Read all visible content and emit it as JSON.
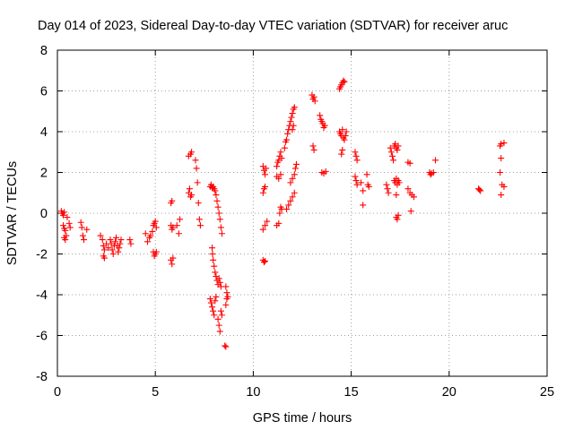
{
  "chart_data": {
    "type": "scatter",
    "title": "Day 014 of 2023, Sidereal Day-to-day VTEC variation (SDTVAR) for receiver aruc",
    "xlabel": "GPS time / hours",
    "ylabel": "SDTVAR / TECUs",
    "xlim": [
      0,
      25
    ],
    "ylim": [
      -8,
      8
    ],
    "xticks": [
      0,
      5,
      10,
      15,
      20,
      25
    ],
    "yticks": [
      -8,
      -6,
      -4,
      -2,
      0,
      2,
      4,
      6,
      8
    ],
    "xtick_labels": [
      "0",
      "5",
      "10",
      "15",
      "20",
      "25"
    ],
    "ytick_labels": [
      "-8",
      "-6",
      "-4",
      "-2",
      "0",
      "2",
      "4",
      "6",
      "8"
    ],
    "grid": true,
    "marker": "+",
    "marker_color": "#ff0000",
    "series": [
      {
        "name": "SDTVAR",
        "points": [
          [
            0.2,
            0.1
          ],
          [
            0.25,
            0.0
          ],
          [
            0.3,
            -0.1
          ],
          [
            0.35,
            0.05
          ],
          [
            0.3,
            -0.6
          ],
          [
            0.35,
            -0.75
          ],
          [
            0.4,
            -0.85
          ],
          [
            0.35,
            -1.2
          ],
          [
            0.4,
            -1.3
          ],
          [
            0.45,
            -1.1
          ],
          [
            0.6,
            -0.5
          ],
          [
            0.65,
            -0.7
          ],
          [
            0.5,
            -0.2
          ],
          [
            1.2,
            -0.45
          ],
          [
            1.25,
            -0.7
          ],
          [
            1.3,
            -1.1
          ],
          [
            1.35,
            -1.3
          ],
          [
            1.5,
            -0.8
          ],
          [
            2.2,
            -1.1
          ],
          [
            2.3,
            -1.3
          ],
          [
            2.35,
            -1.6
          ],
          [
            2.4,
            -1.8
          ],
          [
            2.35,
            -2.1
          ],
          [
            2.4,
            -2.2
          ],
          [
            2.5,
            -1.5
          ],
          [
            2.6,
            -1.7
          ],
          [
            2.7,
            -1.3
          ],
          [
            2.75,
            -1.5
          ],
          [
            2.8,
            -1.8
          ],
          [
            2.85,
            -2.0
          ],
          [
            2.9,
            -1.6
          ],
          [
            2.95,
            -1.4
          ],
          [
            3.0,
            -1.2
          ],
          [
            3.05,
            -1.6
          ],
          [
            3.1,
            -1.9
          ],
          [
            3.15,
            -1.7
          ],
          [
            3.2,
            -1.5
          ],
          [
            3.25,
            -1.3
          ],
          [
            3.7,
            -1.3
          ],
          [
            3.75,
            -1.5
          ],
          [
            4.5,
            -1.0
          ],
          [
            4.6,
            -1.4
          ],
          [
            4.7,
            -1.2
          ],
          [
            4.75,
            -1.1
          ],
          [
            4.85,
            -0.9
          ],
          [
            4.9,
            -0.6
          ],
          [
            4.95,
            -0.5
          ],
          [
            5.0,
            -0.4
          ],
          [
            5.05,
            -0.7
          ],
          [
            4.9,
            -1.9
          ],
          [
            4.95,
            -2.1
          ],
          [
            5.0,
            -2.0
          ],
          [
            5.05,
            -1.9
          ],
          [
            5.8,
            -2.3
          ],
          [
            5.85,
            -2.5
          ],
          [
            5.9,
            -2.2
          ],
          [
            5.8,
            0.5
          ],
          [
            5.85,
            0.6
          ],
          [
            5.8,
            -0.6
          ],
          [
            5.85,
            -0.8
          ],
          [
            5.9,
            -0.7
          ],
          [
            6.1,
            -0.6
          ],
          [
            6.2,
            -1.0
          ],
          [
            6.25,
            -0.3
          ],
          [
            6.7,
            1.0
          ],
          [
            6.75,
            1.2
          ],
          [
            6.8,
            0.8
          ],
          [
            6.85,
            0.9
          ],
          [
            6.7,
            2.8
          ],
          [
            6.8,
            2.9
          ],
          [
            6.85,
            3.0
          ],
          [
            7.05,
            2.6
          ],
          [
            7.1,
            2.2
          ],
          [
            7.15,
            1.5
          ],
          [
            7.2,
            0.5
          ],
          [
            7.25,
            -0.3
          ],
          [
            7.3,
            -0.6
          ],
          [
            7.8,
            1.3
          ],
          [
            7.85,
            1.4
          ],
          [
            7.9,
            1.25
          ],
          [
            7.95,
            1.3
          ],
          [
            8.0,
            1.2
          ],
          [
            8.05,
            1.1
          ],
          [
            8.1,
            0.9
          ],
          [
            8.15,
            0.6
          ],
          [
            8.2,
            0.3
          ],
          [
            8.25,
            0.0
          ],
          [
            8.3,
            -0.3
          ],
          [
            8.35,
            -0.7
          ],
          [
            8.4,
            -1.0
          ],
          [
            7.9,
            -1.7
          ],
          [
            7.92,
            -2.0
          ],
          [
            7.95,
            -2.3
          ],
          [
            8.0,
            -2.6
          ],
          [
            8.05,
            -2.9
          ],
          [
            8.1,
            -3.1
          ],
          [
            8.15,
            -3.3
          ],
          [
            8.2,
            -3.5
          ],
          [
            8.25,
            -3.2
          ],
          [
            8.3,
            -3.4
          ],
          [
            8.35,
            -3.6
          ],
          [
            7.8,
            -4.2
          ],
          [
            7.85,
            -4.4
          ],
          [
            7.9,
            -4.6
          ],
          [
            7.95,
            -4.8
          ],
          [
            8.0,
            -5.0
          ],
          [
            8.05,
            -4.3
          ],
          [
            8.1,
            -4.1
          ],
          [
            8.2,
            -5.2
          ],
          [
            8.25,
            -5.5
          ],
          [
            8.3,
            -5.8
          ],
          [
            8.35,
            -4.8
          ],
          [
            8.4,
            -5.0
          ],
          [
            8.6,
            -3.6
          ],
          [
            8.65,
            -3.9
          ],
          [
            8.7,
            -4.1
          ],
          [
            8.6,
            -4.5
          ],
          [
            8.65,
            -4.2
          ],
          [
            8.55,
            -6.5
          ],
          [
            8.6,
            -6.55
          ],
          [
            10.5,
            2.3
          ],
          [
            10.55,
            2.1
          ],
          [
            10.6,
            1.9
          ],
          [
            10.65,
            2.2
          ],
          [
            10.5,
            1.0
          ],
          [
            10.55,
            1.2
          ],
          [
            10.6,
            1.3
          ],
          [
            10.5,
            -0.8
          ],
          [
            10.6,
            -0.6
          ],
          [
            10.7,
            -0.4
          ],
          [
            10.5,
            -2.3
          ],
          [
            10.55,
            -2.4
          ],
          [
            10.6,
            -2.35
          ],
          [
            11.2,
            -0.6
          ],
          [
            11.3,
            -0.5
          ],
          [
            11.35,
            0.0
          ],
          [
            11.4,
            0.3
          ],
          [
            11.45,
            0.2
          ],
          [
            11.2,
            1.8
          ],
          [
            11.3,
            1.7
          ],
          [
            11.4,
            1.9
          ],
          [
            11.2,
            2.3
          ],
          [
            11.25,
            2.5
          ],
          [
            11.3,
            2.6
          ],
          [
            11.35,
            2.8
          ],
          [
            11.4,
            3.0
          ],
          [
            11.45,
            2.7
          ],
          [
            11.6,
            3.2
          ],
          [
            11.65,
            3.5
          ],
          [
            11.7,
            3.6
          ],
          [
            11.75,
            3.9
          ],
          [
            11.8,
            4.1
          ],
          [
            11.85,
            4.3
          ],
          [
            11.9,
            4.5
          ],
          [
            11.95,
            4.7
          ],
          [
            12.0,
            4.9
          ],
          [
            12.05,
            5.1
          ],
          [
            12.1,
            5.2
          ],
          [
            12.0,
            4.1
          ],
          [
            12.05,
            4.3
          ],
          [
            11.7,
            0.2
          ],
          [
            11.8,
            0.4
          ],
          [
            11.9,
            0.6
          ],
          [
            12.0,
            0.8
          ],
          [
            12.1,
            1.0
          ],
          [
            11.9,
            1.5
          ],
          [
            12.0,
            1.7
          ],
          [
            12.1,
            1.9
          ],
          [
            12.15,
            2.2
          ],
          [
            12.2,
            2.4
          ],
          [
            13.0,
            5.8
          ],
          [
            13.05,
            5.6
          ],
          [
            13.1,
            5.7
          ],
          [
            13.15,
            5.5
          ],
          [
            13.05,
            3.3
          ],
          [
            13.1,
            3.1
          ],
          [
            13.4,
            4.8
          ],
          [
            13.45,
            4.6
          ],
          [
            13.5,
            4.5
          ],
          [
            13.55,
            4.4
          ],
          [
            13.6,
            4.2
          ],
          [
            13.65,
            4.3
          ],
          [
            13.5,
            2.0
          ],
          [
            13.6,
            1.95
          ],
          [
            13.7,
            2.05
          ],
          [
            14.4,
            6.1
          ],
          [
            14.45,
            6.2
          ],
          [
            14.5,
            6.3
          ],
          [
            14.55,
            6.4
          ],
          [
            14.6,
            6.5
          ],
          [
            14.65,
            6.45
          ],
          [
            14.4,
            4.0
          ],
          [
            14.45,
            3.9
          ],
          [
            14.5,
            3.8
          ],
          [
            14.55,
            4.1
          ],
          [
            14.6,
            3.7
          ],
          [
            14.65,
            3.6
          ],
          [
            14.7,
            3.8
          ],
          [
            14.75,
            4.0
          ],
          [
            14.5,
            2.9
          ],
          [
            14.55,
            3.1
          ],
          [
            15.2,
            3.0
          ],
          [
            15.25,
            2.8
          ],
          [
            15.3,
            2.6
          ],
          [
            15.2,
            1.8
          ],
          [
            15.25,
            1.6
          ],
          [
            15.3,
            1.4
          ],
          [
            15.5,
            1.5
          ],
          [
            15.6,
            1.1
          ],
          [
            15.6,
            0.4
          ],
          [
            15.8,
            1.9
          ],
          [
            15.85,
            1.4
          ],
          [
            15.9,
            1.3
          ],
          [
            16.8,
            1.4
          ],
          [
            16.85,
            1.2
          ],
          [
            16.9,
            1.0
          ],
          [
            17.0,
            3.2
          ],
          [
            17.05,
            3.0
          ],
          [
            17.1,
            2.8
          ],
          [
            17.15,
            2.6
          ],
          [
            17.2,
            3.3
          ],
          [
            17.25,
            3.4
          ],
          [
            17.3,
            3.2
          ],
          [
            17.35,
            3.1
          ],
          [
            17.4,
            3.3
          ],
          [
            17.2,
            1.6
          ],
          [
            17.25,
            1.5
          ],
          [
            17.3,
            1.7
          ],
          [
            17.35,
            1.4
          ],
          [
            17.4,
            1.6
          ],
          [
            17.45,
            1.5
          ],
          [
            17.3,
            -0.2
          ],
          [
            17.35,
            -0.3
          ],
          [
            17.4,
            -0.1
          ],
          [
            17.3,
            0.9
          ],
          [
            17.9,
            1.2
          ],
          [
            18.0,
            1.0
          ],
          [
            18.1,
            0.9
          ],
          [
            18.2,
            0.8
          ],
          [
            17.9,
            2.5
          ],
          [
            18.0,
            2.45
          ],
          [
            18.05,
            0.1
          ],
          [
            19.0,
            2.0
          ],
          [
            19.05,
            1.9
          ],
          [
            19.1,
            1.95
          ],
          [
            19.2,
            2.0
          ],
          [
            19.3,
            2.6
          ],
          [
            21.5,
            1.2
          ],
          [
            21.55,
            1.15
          ],
          [
            21.6,
            1.1
          ],
          [
            22.6,
            3.3
          ],
          [
            22.65,
            3.4
          ],
          [
            22.8,
            3.45
          ],
          [
            22.65,
            2.7
          ],
          [
            22.6,
            2.0
          ],
          [
            22.7,
            1.4
          ],
          [
            22.65,
            0.9
          ],
          [
            22.8,
            1.3
          ]
        ]
      }
    ]
  }
}
